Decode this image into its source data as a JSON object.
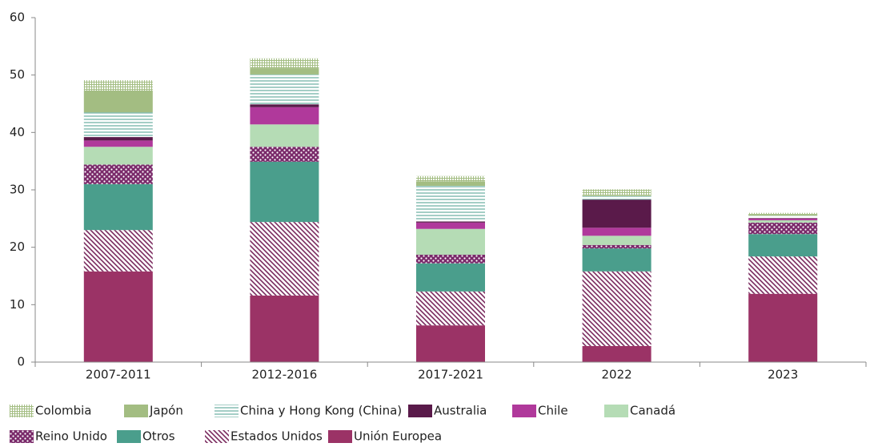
{
  "chart_data": {
    "type": "stacked_bar",
    "categories": [
      "2007-2011",
      "2012-2016",
      "2017-2021",
      "2022",
      "2023"
    ],
    "ylim": [
      0,
      60
    ],
    "yticks": [
      0,
      10,
      20,
      30,
      40,
      50,
      60
    ],
    "series": [
      {
        "name": "Unión Europea",
        "color": "#9b3366",
        "pattern": "solid",
        "values": [
          15.8,
          11.6,
          6.4,
          2.8,
          11.9
        ]
      },
      {
        "name": "Estados Unidos",
        "color": "#7a2a5e",
        "pattern": "hatch",
        "values": [
          7.2,
          12.8,
          5.9,
          13.0,
          6.5
        ]
      },
      {
        "name": "Otros",
        "color": "#4a9e8c",
        "pattern": "solid",
        "values": [
          8.0,
          10.5,
          4.9,
          4.0,
          3.9
        ]
      },
      {
        "name": "Reino Unido",
        "color": "#7a2a6a",
        "pattern": "dots",
        "values": [
          3.4,
          2.6,
          1.5,
          0.6,
          2.0
        ]
      },
      {
        "name": "Canadá",
        "color": "#b5dcb5",
        "pattern": "solid",
        "values": [
          3.1,
          3.9,
          4.5,
          1.6,
          0.4
        ]
      },
      {
        "name": "Chile",
        "color": "#b0399b",
        "pattern": "solid",
        "values": [
          1.1,
          3.0,
          1.1,
          1.4,
          0.3
        ]
      },
      {
        "name": "Australia",
        "color": "#5a1a4a",
        "pattern": "solid",
        "values": [
          0.6,
          0.5,
          0.2,
          4.9,
          0.1
        ]
      },
      {
        "name": "China y Hong Kong (China)",
        "color": "#4a9e8c",
        "pattern": "hlines",
        "values": [
          4.3,
          5.2,
          6.2,
          0.6,
          0.4
        ]
      },
      {
        "name": "Japón",
        "color": "#a3bd82",
        "pattern": "solid",
        "values": [
          3.8,
          1.1,
          0.8,
          0.1,
          0.3
        ]
      },
      {
        "name": "Colombia",
        "color": "#a3bd82",
        "pattern": "grid",
        "values": [
          1.8,
          1.7,
          0.9,
          1.1,
          0.2
        ]
      }
    ]
  }
}
